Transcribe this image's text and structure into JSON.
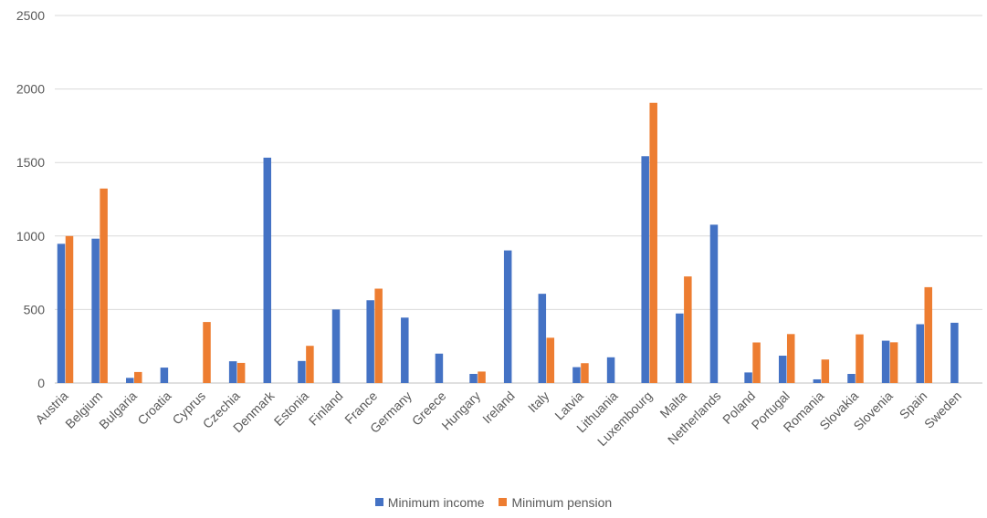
{
  "chart_data": {
    "type": "bar",
    "categories": [
      "Austria",
      "Belgium",
      "Bulgaria",
      "Croatia",
      "Cyprus",
      "Czechia",
      "Denmark",
      "Estonia",
      "Finland",
      "France",
      "Germany",
      "Greece",
      "Hungary",
      "Ireland",
      "Italy",
      "Latvia",
      "Lithuania",
      "Luxembourg",
      "Malta",
      "Netherlands",
      "Poland",
      "Portugal",
      "Romania",
      "Slovakia",
      "Slovenia",
      "Spain",
      "Sweden"
    ],
    "series": [
      {
        "name": "Minimum income",
        "color": "#4472c4",
        "values": [
          947,
          982,
          35,
          105,
          0,
          148,
          1533,
          150,
          500,
          563,
          445,
          200,
          62,
          902,
          607,
          108,
          175,
          1543,
          473,
          1077,
          72,
          186,
          25,
          62,
          288,
          400,
          410
        ]
      },
      {
        "name": "Minimum pension",
        "color": "#ed7d31",
        "values": [
          1000,
          1323,
          75,
          0,
          415,
          137,
          0,
          253,
          0,
          642,
          0,
          0,
          78,
          0,
          308,
          135,
          0,
          1906,
          725,
          0,
          276,
          333,
          160,
          331,
          277,
          652,
          0
        ]
      }
    ],
    "yticks": [
      0,
      500,
      1000,
      1500,
      2000,
      2500
    ],
    "ylim": [
      0,
      2500
    ],
    "title": "",
    "xlabel": "",
    "ylabel": "",
    "grid": true,
    "legend_position": "bottom"
  }
}
